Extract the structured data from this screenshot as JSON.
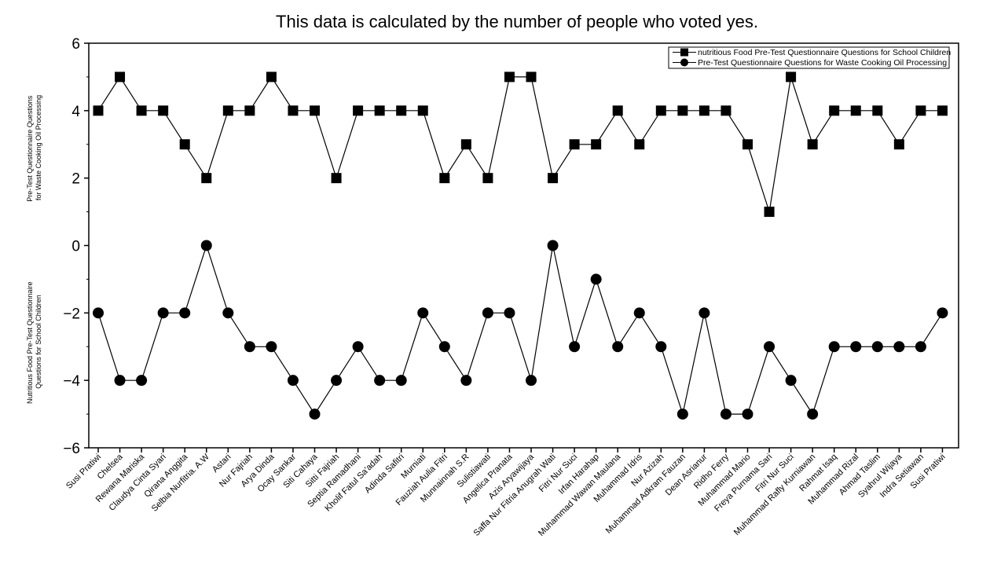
{
  "chart_data": {
    "type": "line",
    "title": "This data is calculated by the number of people who voted yes.",
    "ylabel_upper": [
      "Pre-Test Questionnaire Questions",
      "for Waste Cooking Oil Processing"
    ],
    "ylabel_lower": [
      "Nutritious Food Pre-Test Questionnaire",
      "Questions for School Children"
    ],
    "ylim": [
      -6,
      6
    ],
    "yticks": [
      -6,
      -4,
      -2,
      0,
      2,
      4,
      6
    ],
    "ytick_labels": [
      "−6",
      "−4",
      "−2",
      "0",
      "2",
      "4",
      "6"
    ],
    "categories": [
      "Susi Pratiwi",
      "Chelsea",
      "Rewana Mariska",
      "Claudya Cinta Syari",
      "Qirana Anggita",
      "Selbia Nurfitria. A.W",
      "Astari",
      "Nur Fajriah",
      "Arya Dinda",
      "Ocay Sankar",
      "Siti Cahaya",
      "Sitti Fajriah",
      "Septia Ramadhani",
      "Kholif Fatul Sa'adah",
      "Adinda Safitri",
      "Murniati",
      "Fauziah Aulia Fitri",
      "Munnainnah S.R",
      "Sulistiawati",
      "Angelica Pranata",
      "Azis Aryawijaya",
      "Saffa Nur Fitria Anugrah Wati",
      "Fitri Nur Suci",
      "Irfan Harahap",
      "Muhammad Wawan Maulana",
      "Muhammad Idris",
      "Nur Azizah",
      "Muhammad Adkram Fauzan",
      "Dean Asrianur",
      "Ridho Ferry",
      "Muhammad Mario",
      "Freya Purnama Sari",
      "Fitri Nur Suci",
      "Muhammad Rafly Kurniawan",
      "Rahmat Isaq",
      "Muhammad Rizal",
      "Ahmad Taslim",
      "Syahrul Wijaya",
      "Indra Setiawan",
      "Susi Pratiwi"
    ],
    "series": [
      {
        "name": "nutritious Food Pre-Test Questionnaire Questions for School Children",
        "marker": "square",
        "values": [
          4,
          5,
          4,
          4,
          3,
          2,
          4,
          4,
          5,
          4,
          4,
          2,
          4,
          4,
          4,
          4,
          2,
          3,
          2,
          5,
          5,
          2,
          3,
          3,
          4,
          3,
          4,
          4,
          4,
          4,
          3,
          1,
          5,
          3,
          4,
          4,
          4,
          3,
          4,
          4
        ]
      },
      {
        "name": "Pre-Test Questionnaire Questions for Waste Cooking Oil Processing",
        "marker": "circle",
        "values": [
          -2,
          -4,
          -4,
          -2,
          -2,
          0,
          -2,
          -3,
          -3,
          -4,
          -5,
          -4,
          -3,
          -4,
          -4,
          -2,
          -3,
          -4,
          -2,
          -2,
          -4,
          0,
          -3,
          -1,
          -3,
          -2,
          -3,
          -5,
          -2,
          -5,
          -5,
          -3,
          -4,
          -5,
          -3,
          -3,
          -3,
          -3,
          -3,
          -2
        ]
      }
    ],
    "legend_position": "top-right",
    "colors": {
      "line": "#000000",
      "marker": "#000000",
      "background": "#ffffff"
    }
  }
}
